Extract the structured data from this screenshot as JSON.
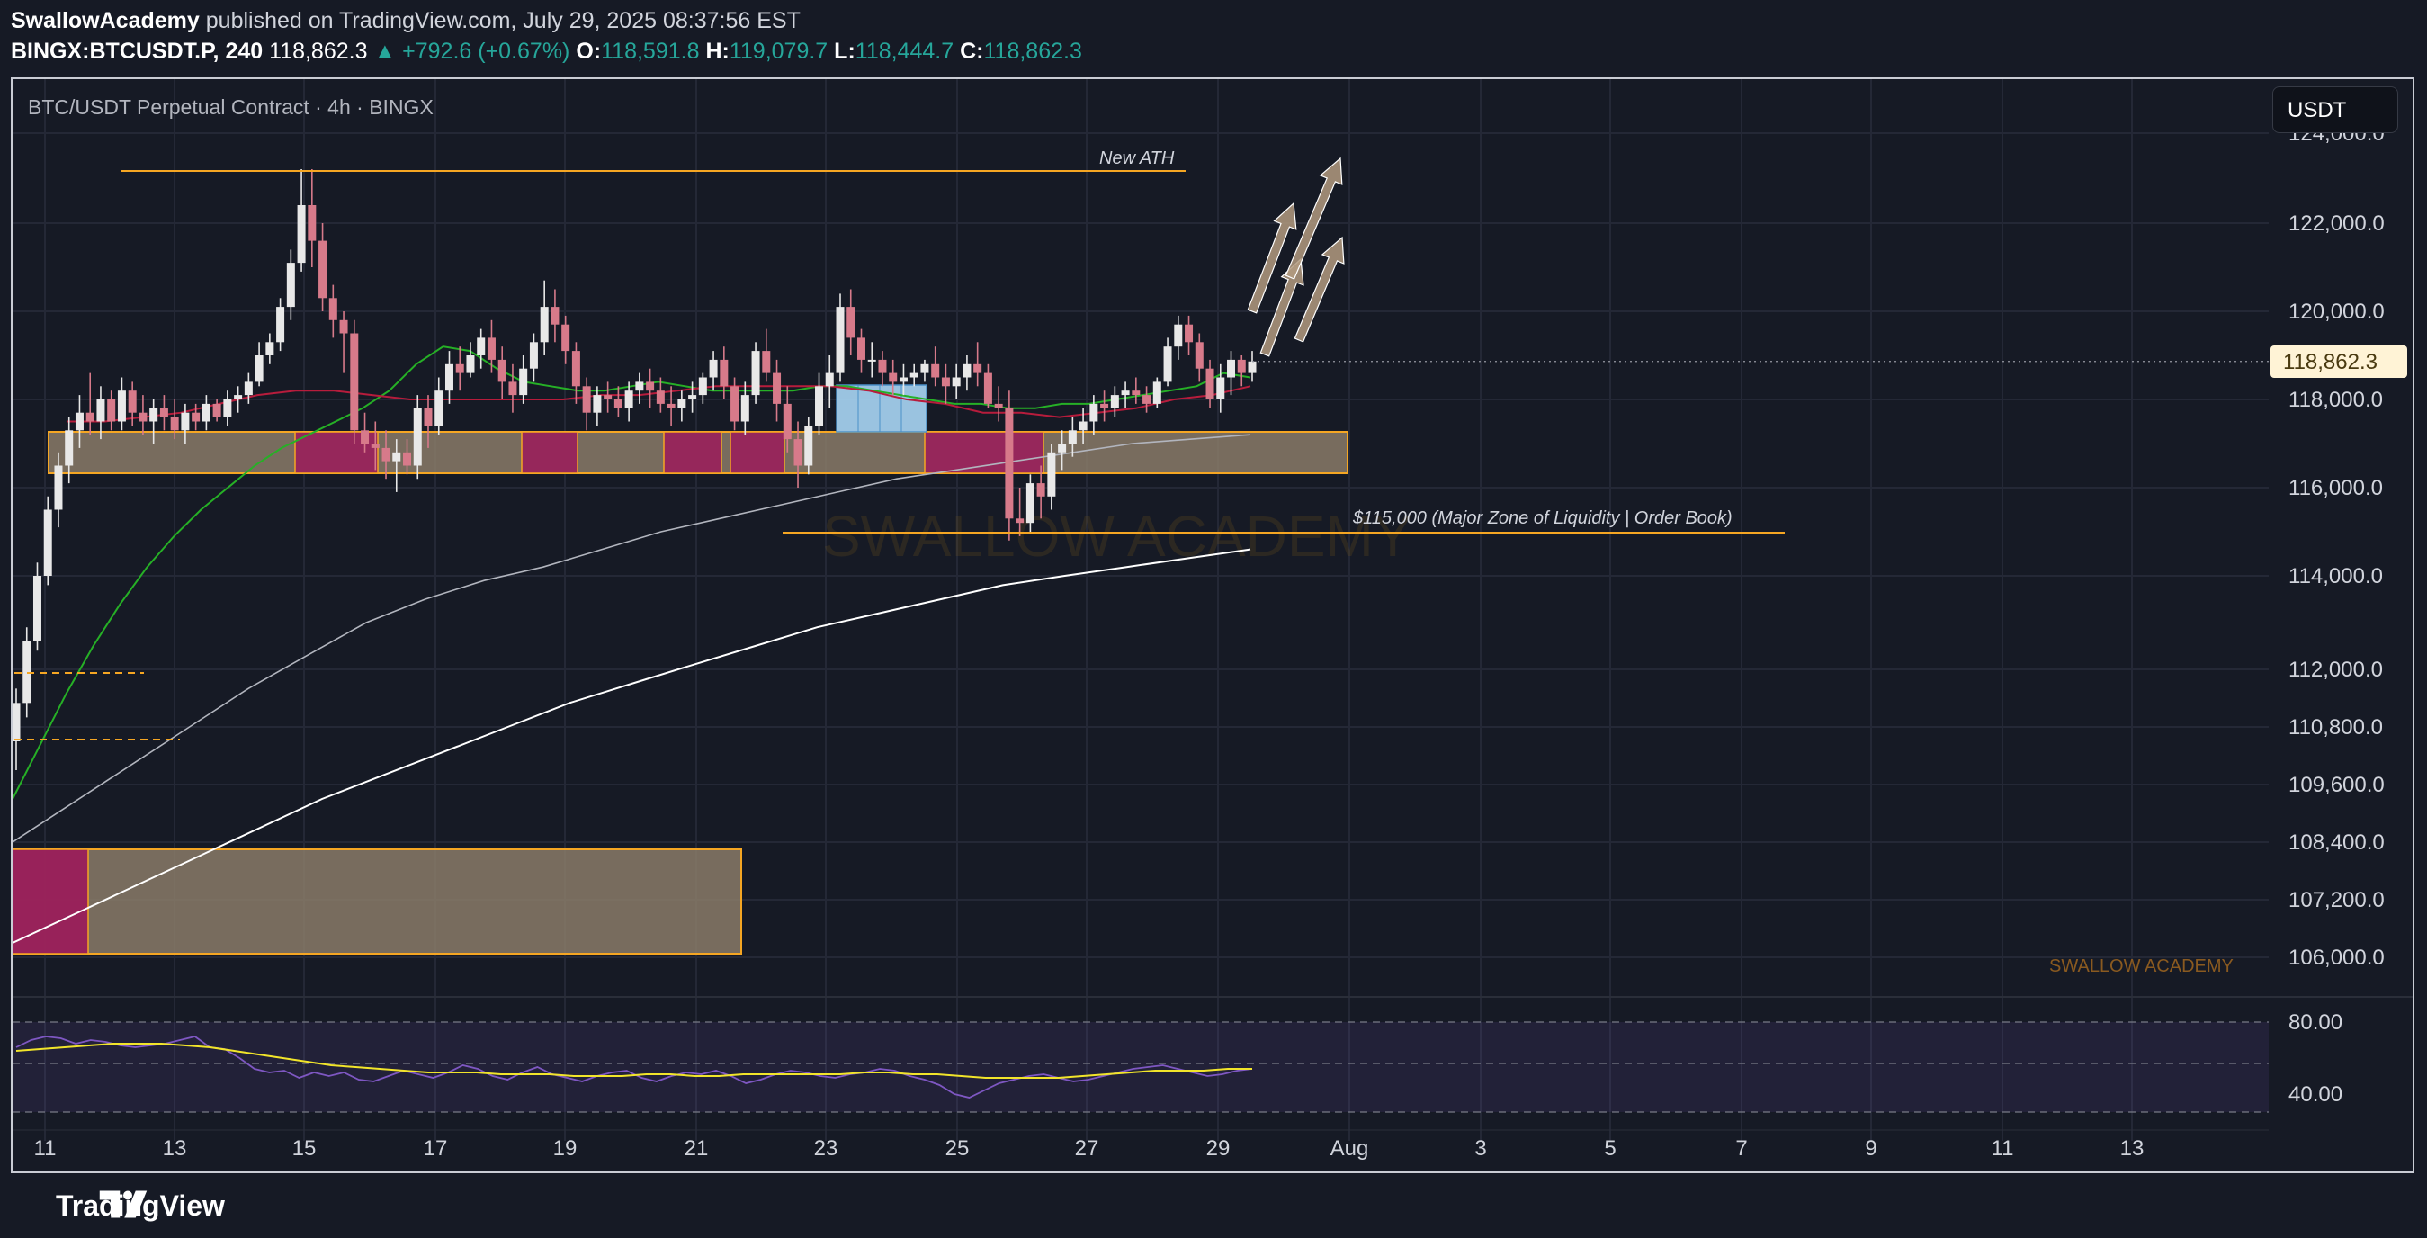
{
  "header": {
    "author": "SwallowAcademy",
    "published": "published on TradingView.com, July 29, 2025 08:37:56 EST",
    "symbol": "BINGX:BTCUSDT.P, 240",
    "last": "118,862.3",
    "change": "▲ +792.6 (+0.67%)",
    "o_label": "O:",
    "o_value": "118,591.8",
    "h_label": "H:",
    "h_value": "119,079.7",
    "l_label": "L:",
    "l_value": "118,444.7",
    "c_label": "C:",
    "c_value": "118,862.3"
  },
  "chart_title": "BTC/USDT Perpetual Contract · 4h · BINGX",
  "currency": "USDT",
  "price_tag": "118,862.3",
  "annotations": {
    "new_ath": "New ATH",
    "liquidity": "$115,000 (Major Zone of Liquidity | Order Book)",
    "watermark_center": "SWALLOW ACADEMY",
    "watermark_corner": "SWALLOW ACADEMY"
  },
  "footer": {
    "brand": "TradingView"
  },
  "colors": {
    "bull": "#e8e8e8",
    "bear": "#d77a8a",
    "ema_fast": "#26b026",
    "ema_mid": "#b71c3c",
    "sma_100": "#b2b5be",
    "sma_200": "#ffffff",
    "zone": "#8a7b68",
    "zone_red": "#9b1b5a",
    "zone_blue": "#a9d6f5",
    "accent": "#f5a623",
    "rsi_line": "#7e57c2",
    "rsi_ma": "#f2e52a"
  },
  "chart_data": {
    "type": "candlestick",
    "price_axis": {
      "ticks": [
        "124,000.0",
        "122,000.0",
        "120,000.0",
        "118,000.0",
        "116,000.0",
        "114,000.0",
        "112,000.0",
        "110,800.0",
        "109,600.0",
        "108,400.0",
        "107,200.0",
        "106,000.0"
      ]
    },
    "rsi_axis": {
      "ticks": [
        "80.00",
        "40.00"
      ]
    },
    "x_axis": {
      "labels": [
        "11",
        "13",
        "15",
        "17",
        "19",
        "21",
        "23",
        "25",
        "27",
        "29",
        "Aug",
        "3",
        "5",
        "7",
        "9",
        "11",
        "13"
      ]
    },
    "candles": [
      [
        110500,
        111600,
        109900,
        111300
      ],
      [
        111300,
        112900,
        111000,
        112600
      ],
      [
        112600,
        114300,
        112400,
        114000
      ],
      [
        114000,
        115800,
        113800,
        115500
      ],
      [
        115500,
        116800,
        115100,
        116500
      ],
      [
        116500,
        117600,
        116100,
        117300
      ],
      [
        117300,
        118100,
        116900,
        117700
      ],
      [
        117700,
        118600,
        117200,
        117500
      ],
      [
        117500,
        118300,
        117100,
        118000
      ],
      [
        118000,
        118200,
        117300,
        117500
      ],
      [
        117500,
        118500,
        117300,
        118200
      ],
      [
        118200,
        118400,
        117400,
        117700
      ],
      [
        117700,
        118100,
        117200,
        117500
      ],
      [
        117500,
        118000,
        117000,
        117800
      ],
      [
        117800,
        118100,
        117300,
        117600
      ],
      [
        117600,
        118000,
        117100,
        117300
      ],
      [
        117300,
        117900,
        117000,
        117700
      ],
      [
        117700,
        117900,
        117300,
        117500
      ],
      [
        117500,
        118100,
        117300,
        117900
      ],
      [
        117900,
        118000,
        117500,
        117600
      ],
      [
        117600,
        118200,
        117400,
        118000
      ],
      [
        118000,
        118300,
        117700,
        118100
      ],
      [
        118100,
        118600,
        117900,
        118400
      ],
      [
        118400,
        119300,
        118300,
        119000
      ],
      [
        119000,
        119500,
        118800,
        119300
      ],
      [
        119300,
        120300,
        119100,
        120100
      ],
      [
        120100,
        121400,
        119800,
        121100
      ],
      [
        121100,
        123200,
        120900,
        122400
      ],
      [
        122400,
        123200,
        121000,
        121600
      ],
      [
        121600,
        122000,
        120000,
        120300
      ],
      [
        120300,
        120600,
        119400,
        119800
      ],
      [
        119800,
        120000,
        118600,
        119500
      ],
      [
        119500,
        119800,
        117000,
        117300
      ],
      [
        117300,
        117700,
        116800,
        117000
      ],
      [
        117000,
        117500,
        116400,
        116900
      ],
      [
        116900,
        117300,
        116200,
        116600
      ],
      [
        116600,
        117100,
        115900,
        116800
      ],
      [
        116800,
        117100,
        116300,
        116500
      ],
      [
        116500,
        118100,
        116200,
        117800
      ],
      [
        117800,
        118100,
        116900,
        117400
      ],
      [
        117400,
        118500,
        117200,
        118200
      ],
      [
        118200,
        119100,
        117900,
        118800
      ],
      [
        118800,
        119200,
        118200,
        118600
      ],
      [
        118600,
        119300,
        118500,
        119000
      ],
      [
        119000,
        119600,
        118700,
        119400
      ],
      [
        119400,
        119800,
        118600,
        118900
      ],
      [
        118900,
        119200,
        118000,
        118400
      ],
      [
        118400,
        118800,
        117700,
        118100
      ],
      [
        118100,
        119000,
        117900,
        118700
      ],
      [
        118700,
        119500,
        118400,
        119300
      ],
      [
        119300,
        120700,
        119000,
        120100
      ],
      [
        120100,
        120500,
        119300,
        119700
      ],
      [
        119700,
        119900,
        118800,
        119100
      ],
      [
        119100,
        119300,
        117900,
        118300
      ],
      [
        118300,
        118500,
        117300,
        117700
      ],
      [
        117700,
        118300,
        117400,
        118100
      ],
      [
        118100,
        118400,
        117700,
        118000
      ],
      [
        118000,
        118300,
        117600,
        117800
      ],
      [
        117800,
        118400,
        117500,
        118200
      ],
      [
        118200,
        118600,
        117900,
        118400
      ],
      [
        118400,
        118700,
        117800,
        118200
      ],
      [
        118200,
        118500,
        117700,
        117900
      ],
      [
        117900,
        118300,
        117400,
        117800
      ],
      [
        117800,
        118200,
        117500,
        118000
      ],
      [
        118000,
        118400,
        117700,
        118100
      ],
      [
        118100,
        118600,
        117900,
        118500
      ],
      [
        118500,
        119100,
        118200,
        118900
      ],
      [
        118900,
        119200,
        118000,
        118300
      ],
      [
        118300,
        118500,
        117300,
        117500
      ],
      [
        117500,
        118400,
        117200,
        118100
      ],
      [
        118100,
        119300,
        117900,
        119100
      ],
      [
        119100,
        119600,
        118400,
        118600
      ],
      [
        118600,
        118900,
        117500,
        117900
      ],
      [
        117900,
        118300,
        116800,
        117100
      ],
      [
        117100,
        117500,
        116000,
        116500
      ],
      [
        116500,
        117600,
        116300,
        117400
      ],
      [
        117400,
        118600,
        117200,
        118300
      ],
      [
        118300,
        119000,
        117800,
        118600
      ],
      [
        118600,
        120400,
        118400,
        120100
      ],
      [
        120100,
        120500,
        119000,
        119400
      ],
      [
        119400,
        119600,
        118600,
        118900
      ],
      [
        118900,
        119300,
        118500,
        118900
      ],
      [
        118900,
        119100,
        118300,
        118600
      ],
      [
        118600,
        118900,
        118100,
        118400
      ],
      [
        118400,
        118800,
        118100,
        118500
      ],
      [
        118500,
        118800,
        118300,
        118600
      ],
      [
        118600,
        118900,
        118400,
        118800
      ],
      [
        118800,
        119200,
        118300,
        118500
      ],
      [
        118500,
        118800,
        117900,
        118300
      ],
      [
        118300,
        118800,
        118000,
        118500
      ],
      [
        118500,
        119000,
        118200,
        118800
      ],
      [
        118800,
        119300,
        118300,
        118600
      ],
      [
        118600,
        118800,
        117800,
        117900
      ],
      [
        117900,
        118300,
        117500,
        117800
      ],
      [
        117800,
        118200,
        114800,
        115300
      ],
      [
        115300,
        116000,
        114900,
        115200
      ],
      [
        115200,
        116300,
        115000,
        116100
      ],
      [
        116100,
        116500,
        115300,
        115800
      ],
      [
        115800,
        117000,
        115500,
        116800
      ],
      [
        116800,
        117300,
        116400,
        117000
      ],
      [
        117000,
        117600,
        116700,
        117300
      ],
      [
        117300,
        117800,
        117000,
        117500
      ],
      [
        117500,
        118100,
        117200,
        117900
      ],
      [
        117900,
        118200,
        117500,
        117800
      ],
      [
        117800,
        118300,
        117600,
        118100
      ],
      [
        118100,
        118400,
        117800,
        118200
      ],
      [
        118200,
        118500,
        117900,
        118100
      ],
      [
        118100,
        118300,
        117700,
        117900
      ],
      [
        117900,
        118500,
        117800,
        118400
      ],
      [
        118400,
        119400,
        118300,
        119200
      ],
      [
        119200,
        119900,
        118900,
        119700
      ],
      [
        119700,
        119900,
        119000,
        119300
      ],
      [
        119300,
        119500,
        118400,
        118700
      ],
      [
        118700,
        118900,
        117800,
        118000
      ],
      [
        118000,
        118800,
        117700,
        118500
      ],
      [
        118500,
        119100,
        118100,
        118900
      ],
      [
        118900,
        119000,
        118300,
        118600
      ],
      [
        118600,
        119100,
        118400,
        118862
      ]
    ],
    "series": [
      {
        "values": [
          109300,
          110400,
          111500,
          112500,
          113400,
          114200,
          114900,
          115500,
          116000,
          116500,
          116900,
          117200,
          117500,
          117800,
          118200,
          118800,
          119200,
          119100,
          118700,
          118400,
          118300,
          118200,
          118200,
          118300,
          118400,
          118300,
          118200,
          118200,
          118200,
          118200,
          118300,
          118300,
          118200,
          118100,
          118000,
          117900,
          117900,
          117800,
          117800,
          117900,
          117900,
          118000,
          118100,
          118200,
          118300,
          118600,
          118500
        ]
      },
      {
        "values": [
          117500,
          117500,
          117600,
          117700,
          117900,
          118100,
          118200,
          118200,
          118100,
          118000,
          118000,
          118000,
          118000,
          118000,
          118100,
          118100,
          118200,
          118300,
          118300,
          118300,
          118300,
          118200,
          118000,
          117900,
          117700,
          117700,
          117600,
          117700,
          117800,
          118000,
          118100,
          118300
        ]
      },
      {
        "values": [
          108400,
          109200,
          110000,
          110800,
          111600,
          112300,
          113000,
          113500,
          113900,
          114200,
          114600,
          115000,
          115300,
          115600,
          115900,
          116200,
          116400,
          116600,
          116800,
          117000,
          117100,
          117200
        ]
      },
      {
        "values": [
          106300,
          106900,
          107500,
          108100,
          108700,
          109300,
          109800,
          110300,
          110800,
          111300,
          111700,
          112100,
          112500,
          112900,
          113200,
          113500,
          113800,
          114000,
          114200,
          114400,
          114600
        ]
      }
    ],
    "rsi": [
      66,
      70,
      72,
      71,
      68,
      70,
      69,
      67,
      66,
      67,
      68,
      70,
      72,
      66,
      65,
      60,
      54,
      52,
      53,
      49,
      52,
      50,
      52,
      48,
      47,
      50,
      53,
      51,
      49,
      52,
      56,
      54,
      50,
      48,
      52,
      55,
      51,
      49,
      47,
      50,
      52,
      53,
      49,
      47,
      50,
      52,
      51,
      53,
      50,
      46,
      48,
      51,
      53,
      52,
      50,
      49,
      51,
      52,
      54,
      53,
      50,
      48,
      45,
      40,
      38,
      42,
      46,
      48,
      50,
      51,
      49,
      47,
      48,
      50,
      52,
      54,
      55,
      56,
      54,
      52,
      50,
      51,
      53,
      54
    ],
    "rsi_ma": [
      64,
      65,
      66,
      67,
      68,
      68,
      68,
      67,
      66,
      64,
      62,
      60,
      58,
      56,
      55,
      54,
      53,
      52,
      52,
      52,
      51,
      51,
      51,
      50,
      50,
      50,
      51,
      51,
      50,
      50,
      51,
      51,
      51,
      51,
      51,
      52,
      52,
      51,
      51,
      50,
      49,
      49,
      49,
      49,
      50,
      51,
      52,
      53,
      53,
      53,
      54,
      54
    ]
  }
}
